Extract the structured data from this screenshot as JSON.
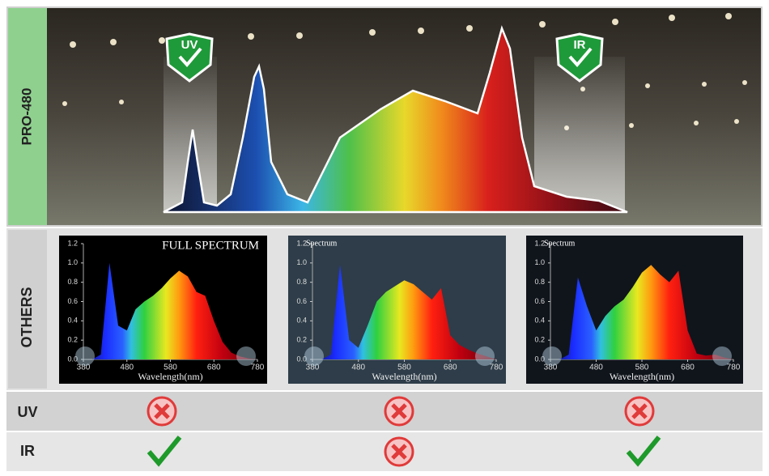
{
  "header": {
    "label": "PRO-480",
    "badges": [
      "UV",
      "IR"
    ]
  },
  "others": {
    "label": "OTHERS"
  },
  "rows": [
    {
      "label": "UV"
    },
    {
      "label": "IR"
    }
  ],
  "chart_data": [
    {
      "type": "area",
      "title": "FULL SPECTRUM",
      "x_label": "Wavelength(nm)",
      "x": [
        380,
        400,
        420,
        440,
        460,
        480,
        500,
        520,
        540,
        560,
        580,
        600,
        620,
        640,
        660,
        680,
        700,
        720,
        740,
        760,
        780
      ],
      "values": [
        0,
        0,
        0.05,
        1.0,
        0.35,
        0.3,
        0.52,
        0.6,
        0.66,
        0.74,
        0.84,
        0.92,
        0.86,
        0.7,
        0.66,
        0.4,
        0.18,
        0.07,
        0.03,
        0.01,
        0
      ],
      "xlim": [
        380,
        780
      ],
      "ylim": [
        0,
        1.2
      ],
      "xticks": [
        380,
        480,
        580,
        680,
        780
      ],
      "yticks": [
        {
          "value": 0,
          "label": "0.0"
        },
        0.2,
        0.4,
        0.6,
        0.8,
        {
          "value": 1,
          "label": "1.0"
        },
        1.2
      ]
    },
    {
      "type": "area",
      "title": "Spectrum",
      "x_label": "Wavelength(nm)",
      "x": [
        380,
        400,
        420,
        440,
        460,
        480,
        500,
        520,
        540,
        560,
        580,
        600,
        620,
        640,
        660,
        680,
        700,
        720,
        740,
        760,
        780
      ],
      "values": [
        0,
        0,
        0.05,
        0.98,
        0.2,
        0.12,
        0.35,
        0.6,
        0.7,
        0.76,
        0.82,
        0.78,
        0.7,
        0.62,
        0.74,
        0.25,
        0.15,
        0.1,
        0.06,
        0.03,
        0
      ],
      "xlim": [
        380,
        780
      ],
      "ylim": [
        0,
        1.2
      ],
      "xticks": [
        380,
        480,
        580,
        680,
        780
      ],
      "yticks": [
        {
          "value": 0,
          "label": "0.0"
        },
        0.2,
        0.4,
        0.6,
        0.8,
        {
          "value": 1,
          "label": "1.0"
        },
        1.2
      ]
    },
    {
      "type": "area",
      "title": "Spectrum",
      "x_label": "Wavelength(nm)",
      "x": [
        380,
        400,
        420,
        440,
        460,
        480,
        500,
        520,
        540,
        560,
        580,
        600,
        620,
        640,
        660,
        680,
        700,
        720,
        740,
        760,
        780
      ],
      "values": [
        0,
        0,
        0.05,
        0.85,
        0.55,
        0.3,
        0.45,
        0.55,
        0.62,
        0.75,
        0.9,
        0.98,
        0.88,
        0.8,
        0.92,
        0.3,
        0.06,
        0.04,
        0.05,
        0.02,
        0
      ],
      "xlim": [
        380,
        780
      ],
      "ylim": [
        0,
        1.2
      ],
      "xticks": [
        380,
        480,
        580,
        680,
        780
      ],
      "yticks": [
        {
          "value": 0,
          "label": "0.0"
        },
        0.2,
        0.4,
        0.6,
        0.8,
        {
          "value": 1,
          "label": "1.0"
        },
        1.2
      ]
    }
  ]
}
